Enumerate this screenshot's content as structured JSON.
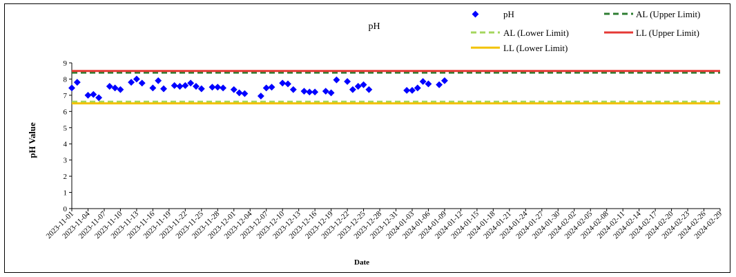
{
  "chart_data": {
    "type": "scatter",
    "title": "pH",
    "xlabel": "Date",
    "ylabel": "pH Value",
    "ylim": [
      0,
      9
    ],
    "yticks": [
      0,
      1,
      2,
      3,
      4,
      5,
      6,
      7,
      8,
      9
    ],
    "x_start": "2023-11-01",
    "x_end": "2024-02-29",
    "x_tick_labels": [
      "2023-11-01",
      "2023-11-04",
      "2023-11-07",
      "2023-11-10",
      "2023-11-13",
      "2023-11-16",
      "2023-11-19",
      "2023-11-22",
      "2023-11-25",
      "2023-11-28",
      "2023-12-01",
      "2023-12-04",
      "2023-12-07",
      "2023-12-10",
      "2023-12-13",
      "2023-12-16",
      "2023-12-19",
      "2023-12-22",
      "2023-12-25",
      "2023-12-28",
      "2023-12-31",
      "2024-01-03",
      "2024-01-06",
      "2024-01-09",
      "2024-01-12",
      "2024-01-15",
      "2024-01-18",
      "2024-01-21",
      "2024-01-24",
      "2024-01-27",
      "2024-01-30",
      "2024-02-02",
      "2024-02-05",
      "2024-02-08",
      "2024-02-11",
      "2024-02-14",
      "2024-02-17",
      "2024-02-20",
      "2024-02-23",
      "2024-02-26",
      "2024-02-29"
    ],
    "grid": false,
    "legend_position": "top-right",
    "series": [
      {
        "name": "pH",
        "color": "#0000FF",
        "marker": "diamond",
        "points": [
          {
            "x": "2023-11-01",
            "y": 7.45
          },
          {
            "x": "2023-11-02",
            "y": 7.8
          },
          {
            "x": "2023-11-04",
            "y": 7.0
          },
          {
            "x": "2023-11-05",
            "y": 7.05
          },
          {
            "x": "2023-11-06",
            "y": 6.85
          },
          {
            "x": "2023-11-08",
            "y": 7.55
          },
          {
            "x": "2023-11-09",
            "y": 7.45
          },
          {
            "x": "2023-11-10",
            "y": 7.35
          },
          {
            "x": "2023-11-12",
            "y": 7.8
          },
          {
            "x": "2023-11-13",
            "y": 8.0
          },
          {
            "x": "2023-11-14",
            "y": 7.75
          },
          {
            "x": "2023-11-16",
            "y": 7.45
          },
          {
            "x": "2023-11-17",
            "y": 7.9
          },
          {
            "x": "2023-11-18",
            "y": 7.4
          },
          {
            "x": "2023-11-20",
            "y": 7.6
          },
          {
            "x": "2023-11-21",
            "y": 7.55
          },
          {
            "x": "2023-11-22",
            "y": 7.6
          },
          {
            "x": "2023-11-23",
            "y": 7.75
          },
          {
            "x": "2023-11-24",
            "y": 7.55
          },
          {
            "x": "2023-11-25",
            "y": 7.4
          },
          {
            "x": "2023-11-27",
            "y": 7.5
          },
          {
            "x": "2023-11-28",
            "y": 7.5
          },
          {
            "x": "2023-11-29",
            "y": 7.45
          },
          {
            "x": "2023-12-01",
            "y": 7.35
          },
          {
            "x": "2023-12-02",
            "y": 7.15
          },
          {
            "x": "2023-12-03",
            "y": 7.1
          },
          {
            "x": "2023-12-06",
            "y": 6.95
          },
          {
            "x": "2023-12-07",
            "y": 7.45
          },
          {
            "x": "2023-12-08",
            "y": 7.5
          },
          {
            "x": "2023-12-10",
            "y": 7.75
          },
          {
            "x": "2023-12-11",
            "y": 7.7
          },
          {
            "x": "2023-12-12",
            "y": 7.35
          },
          {
            "x": "2023-12-14",
            "y": 7.25
          },
          {
            "x": "2023-12-15",
            "y": 7.2
          },
          {
            "x": "2023-12-16",
            "y": 7.2
          },
          {
            "x": "2023-12-18",
            "y": 7.25
          },
          {
            "x": "2023-12-19",
            "y": 7.15
          },
          {
            "x": "2023-12-20",
            "y": 7.95
          },
          {
            "x": "2023-12-22",
            "y": 7.85
          },
          {
            "x": "2023-12-23",
            "y": 7.35
          },
          {
            "x": "2023-12-24",
            "y": 7.55
          },
          {
            "x": "2023-12-25",
            "y": 7.65
          },
          {
            "x": "2023-12-26",
            "y": 7.35
          },
          {
            "x": "2024-01-02",
            "y": 7.3
          },
          {
            "x": "2024-01-03",
            "y": 7.3
          },
          {
            "x": "2024-01-04",
            "y": 7.45
          },
          {
            "x": "2024-01-05",
            "y": 7.85
          },
          {
            "x": "2024-01-06",
            "y": 7.7
          },
          {
            "x": "2024-01-08",
            "y": 7.65
          },
          {
            "x": "2024-01-09",
            "y": 7.9
          }
        ]
      },
      {
        "name": "AL (Upper Limit)",
        "color": "#2E7D32",
        "style": "dashed",
        "value": 8.4
      },
      {
        "name": "AL (Lower Limit)",
        "color": "#A4D65E",
        "style": "dashed",
        "value": 6.6
      },
      {
        "name": "LL (Upper Limit)",
        "color": "#E53935",
        "style": "solid",
        "value": 8.5
      },
      {
        "name": "LL (Lower Limit)",
        "color": "#F2C200",
        "style": "solid",
        "value": 6.5
      }
    ]
  }
}
